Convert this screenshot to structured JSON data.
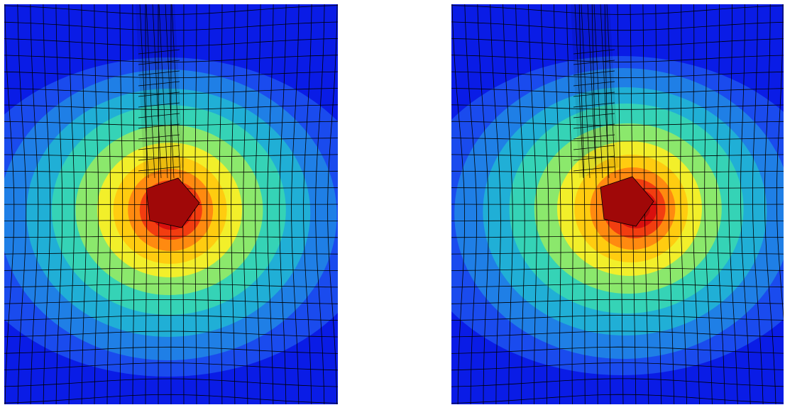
{
  "figure": {
    "panels": [
      {
        "id": "left",
        "hotspot_offset": 0,
        "notch_tilt": 0
      },
      {
        "id": "right",
        "hotspot_offset": 40,
        "notch_tilt": 1
      }
    ],
    "colors": {
      "background": "#0a1ce6",
      "contour_levels": [
        "#1a4bee",
        "#1f7fe6",
        "#20afd6",
        "#35d3b6",
        "#8be86c",
        "#f2ef2a",
        "#ffcc10",
        "#ff8a10",
        "#f23d10",
        "#d8100e",
        "#b00a0a"
      ],
      "mesh_line": "#000000"
    }
  }
}
